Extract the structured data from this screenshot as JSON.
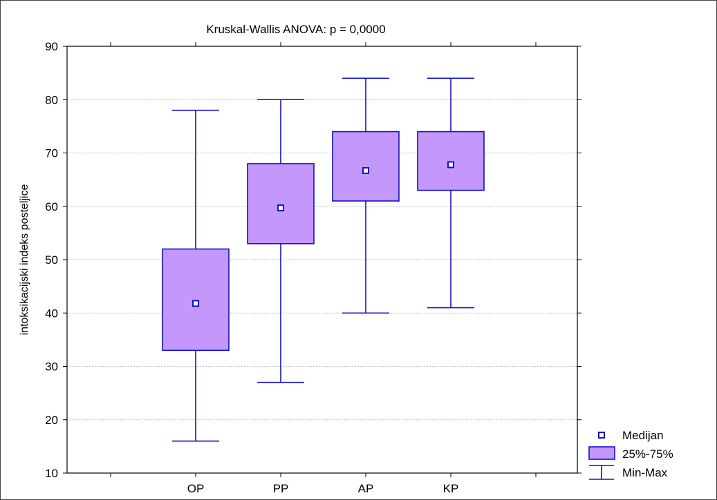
{
  "chart_data": {
    "type": "boxplot",
    "title": "Kruskal-Wallis ANOVA: p = 0,0000",
    "xlabel": "",
    "ylabel": "intoksikacijski indeks posteljice",
    "ylim": [
      10,
      90
    ],
    "yticks": [
      10,
      20,
      30,
      40,
      50,
      60,
      70,
      80,
      90
    ],
    "categories": [
      "OP",
      "PP",
      "AP",
      "KP"
    ],
    "boxes": [
      {
        "category": "OP",
        "min": 16,
        "q1": 33,
        "median": 41.8,
        "q3": 52,
        "max": 78
      },
      {
        "category": "PP",
        "min": 27,
        "q1": 53,
        "median": 59.7,
        "q3": 68,
        "max": 80
      },
      {
        "category": "AP",
        "min": 40,
        "q1": 61,
        "median": 66.7,
        "q3": 74,
        "max": 84
      },
      {
        "category": "KP",
        "min": 41,
        "q1": 63,
        "median": 67.8,
        "q3": 74,
        "max": 84
      }
    ],
    "grid": true,
    "legend_position": "bottom-right",
    "legend": [
      {
        "label": "Medijan",
        "symbol": "median-square"
      },
      {
        "label": "25%-75%",
        "symbol": "box"
      },
      {
        "label": "Min-Max",
        "symbol": "whisker"
      }
    ],
    "colors": {
      "box_fill": "#c497fd",
      "line": "#1010c8",
      "grid": "#a8a8a8",
      "median_fill": "#ffffff"
    }
  }
}
